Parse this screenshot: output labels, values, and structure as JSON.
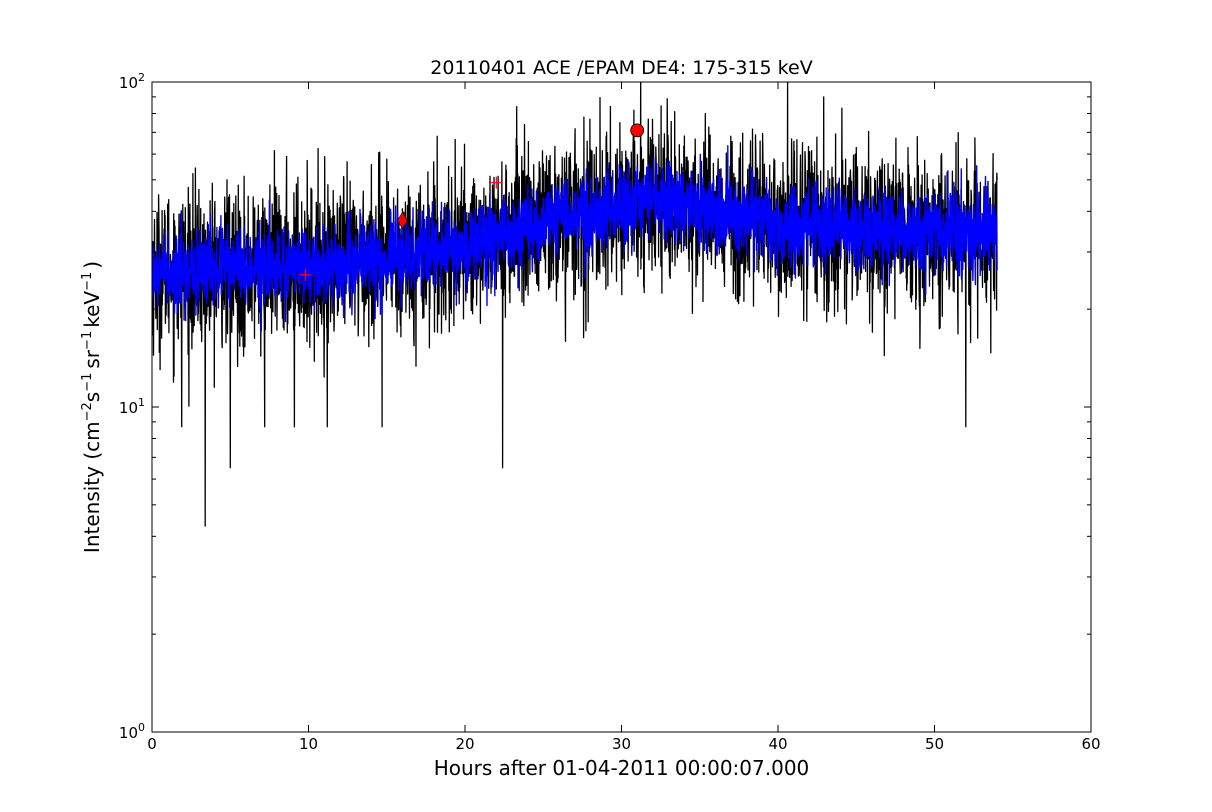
{
  "chart_data": {
    "type": "line",
    "title": "20110401 ACE /EPAM DE4: 175-315 keV",
    "xlabel": "Hours after 01-04-2011 00:00:07.000",
    "ylabel": "Intensity (cm⁻²s⁻¹sr⁻¹keV⁻¹)",
    "ylabel_parts": {
      "prefix": "Intensity (cm",
      "exp1": "−2",
      "unit2": "s",
      "exp2": "−1",
      "unit3": "sr",
      "exp3": "−1",
      "unit4": "keV",
      "exp4": "−1",
      "suffix": ")"
    },
    "xlim": [
      0,
      60
    ],
    "ylim": [
      1,
      100
    ],
    "yscale": "log",
    "grid": false,
    "x_ticks": [
      0,
      10,
      20,
      30,
      40,
      50,
      60
    ],
    "x_tick_labels": [
      "0",
      "10",
      "20",
      "30",
      "40",
      "50",
      "60"
    ],
    "y_ticks": [
      {
        "value": 1,
        "base": "10",
        "exp": "0"
      },
      {
        "value": 10,
        "base": "10",
        "exp": "1"
      },
      {
        "value": 100,
        "base": "10",
        "exp": "2"
      }
    ],
    "series": [
      {
        "name": "",
        "style": "raw",
        "color": "#000000",
        "x_range": [
          0,
          54
        ],
        "trend": [
          [
            0,
            26
          ],
          [
            5,
            27
          ],
          [
            10,
            27
          ],
          [
            15,
            29
          ],
          [
            20,
            31
          ],
          [
            25,
            37
          ],
          [
            30,
            41
          ],
          [
            32,
            44
          ],
          [
            35,
            41
          ],
          [
            40,
            37
          ],
          [
            45,
            36
          ],
          [
            50,
            34
          ],
          [
            54,
            34
          ]
        ],
        "spread": 0.24,
        "spikes_down": [
          [
            3.4,
            4.3
          ],
          [
            5.0,
            6.5
          ],
          [
            22.4,
            6.5
          ],
          [
            52.0,
            8.7
          ],
          [
            1.9,
            8.7
          ],
          [
            7.2,
            8.7
          ],
          [
            9.1,
            8.7
          ],
          [
            14.7,
            8.7
          ],
          [
            11.2,
            8.7
          ]
        ],
        "spikes_up": [
          [
            33.4,
            81
          ],
          [
            27.6,
            78
          ],
          [
            23.8,
            74
          ],
          [
            29.9,
            75
          ],
          [
            37.6,
            65
          ],
          [
            8.6,
            59
          ]
        ]
      },
      {
        "name": "",
        "style": "smoothed",
        "color": "#0000ff",
        "x_range": [
          0,
          54
        ],
        "trend": [
          [
            0,
            26
          ],
          [
            5,
            27
          ],
          [
            10,
            27
          ],
          [
            15,
            29
          ],
          [
            20,
            31
          ],
          [
            25,
            37
          ],
          [
            30,
            41
          ],
          [
            32,
            44
          ],
          [
            35,
            41
          ],
          [
            40,
            37
          ],
          [
            45,
            36
          ],
          [
            50,
            34
          ],
          [
            54,
            34
          ]
        ],
        "spread": 0.12
      }
    ],
    "markers": [
      {
        "type": "circle",
        "x": 31.0,
        "y": 71,
        "color": "#ff0000"
      },
      {
        "type": "diamond",
        "x": 16.0,
        "y": 37.5,
        "color": "#ff0000"
      },
      {
        "type": "plus",
        "x": 9.8,
        "y": 25.5,
        "color": "#ff0000"
      },
      {
        "type": "plus",
        "x": 22.0,
        "y": 49,
        "color": "#ff0000"
      }
    ]
  }
}
